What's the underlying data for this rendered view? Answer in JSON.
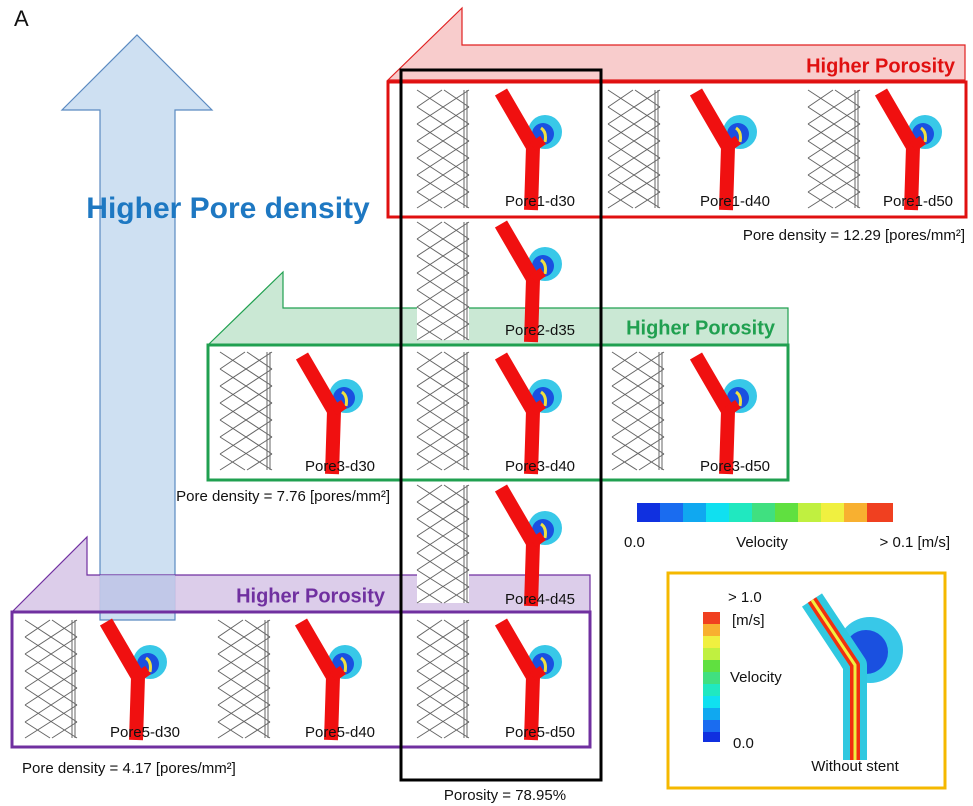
{
  "panel_label": "A",
  "vertical_arrow": {
    "label": "Higher Pore density"
  },
  "groups": [
    {
      "label": "Higher Porosity",
      "pore_density": "Pore density = 12.29 [pores/mm²]"
    },
    {
      "label": "Higher Porosity",
      "pore_density": "Pore density = 7.76 [pores/mm²]"
    },
    {
      "label": "Higher Porosity",
      "pore_density": "Pore density = 4.17 [pores/mm²]"
    }
  ],
  "cells": [
    "Pore1-d30",
    "Pore1-d40",
    "Pore1-d50",
    "Pore2-d35",
    "Pore3-d30",
    "Pore3-d40",
    "Pore3-d50",
    "Pore4-d45",
    "Pore5-d30",
    "Pore5-d40",
    "Pore5-d50"
  ],
  "column_note": "Porosity = 78.95%",
  "colorbar": {
    "min": "0.0",
    "title": "Velocity",
    "max": "> 0.1 [m/s]"
  },
  "inset": {
    "max": "> 1.0",
    "unit": "[m/s]",
    "title": "Velocity",
    "min": "0.0",
    "caption": "Without stent"
  }
}
